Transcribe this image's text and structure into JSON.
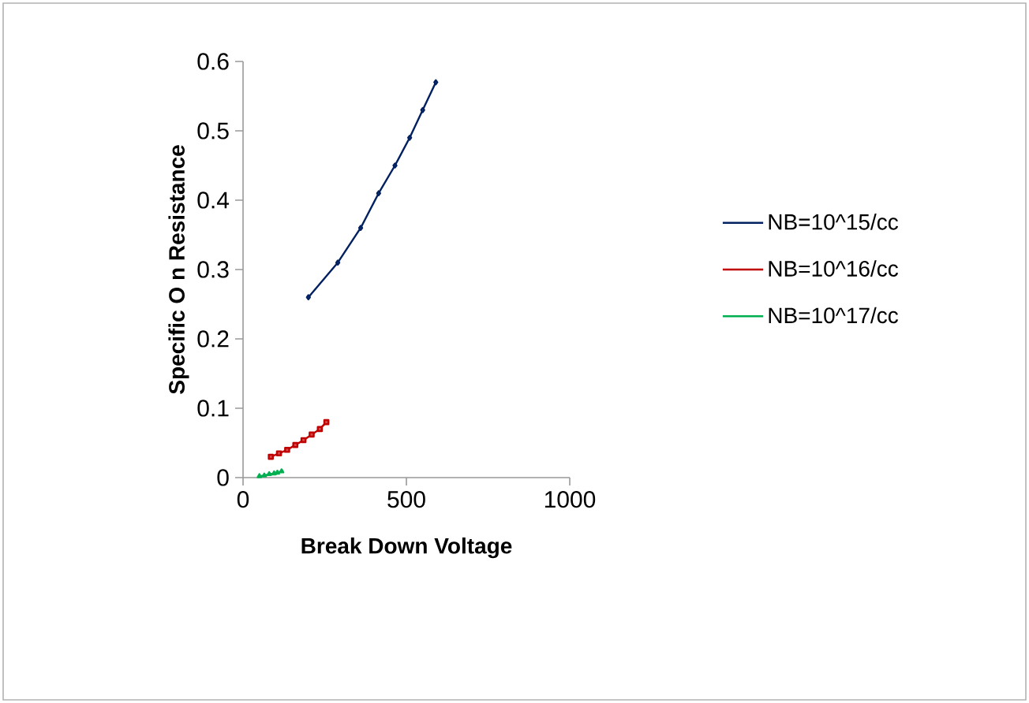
{
  "chart_data": {
    "type": "line",
    "xlabel": "Break Down Voltage",
    "ylabel": "Specific O n Resistance",
    "xlim": [
      0,
      1000
    ],
    "xticks": [
      0,
      500,
      1000
    ],
    "ylim": [
      0,
      0.6
    ],
    "yticks": [
      0,
      0.1,
      0.2,
      0.3,
      0.4,
      0.5,
      0.6
    ],
    "grid": false,
    "legend": "right",
    "series": [
      {
        "name": "NB=10^15/cc",
        "color": "#002060",
        "marker": "diamond",
        "x": [
          200,
          290,
          360,
          415,
          465,
          510,
          550,
          590
        ],
        "values": [
          0.26,
          0.31,
          0.36,
          0.41,
          0.45,
          0.49,
          0.53,
          0.57
        ]
      },
      {
        "name": "NB=10^16/cc",
        "color": "#c00000",
        "marker": "square",
        "x": [
          85,
          110,
          135,
          160,
          185,
          210,
          235,
          255
        ],
        "values": [
          0.03,
          0.035,
          0.04,
          0.047,
          0.054,
          0.062,
          0.07,
          0.08
        ]
      },
      {
        "name": "NB=10^17/cc",
        "color": "#00b050",
        "marker": "triangle",
        "x": [
          50,
          65,
          80,
          95,
          105,
          118
        ],
        "values": [
          0.002,
          0.003,
          0.005,
          0.006,
          0.007,
          0.009
        ]
      }
    ]
  }
}
